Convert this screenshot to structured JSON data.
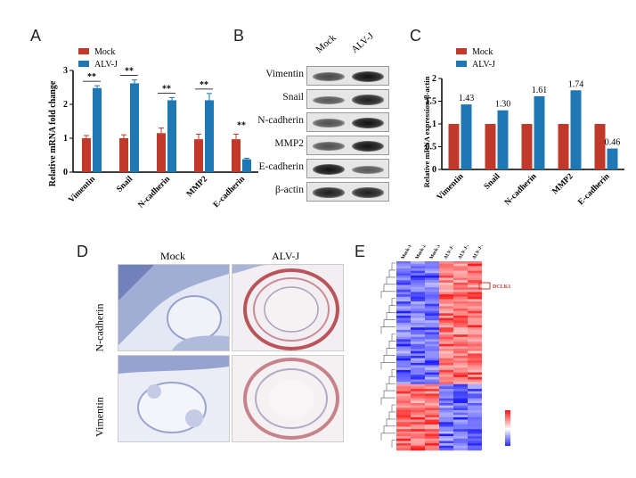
{
  "panels": {
    "a": "A",
    "b": "B",
    "c": "C",
    "d": "D",
    "e": "E"
  },
  "panel_a": {
    "ylabel": "Relative mRNA fold change",
    "legend": [
      "Mock",
      "ALV-J"
    ],
    "significance": "**",
    "colors": {
      "mock": "#c0392b",
      "alvj": "#1f78b4"
    }
  },
  "panel_b": {
    "lanes": [
      "Mock",
      "ALV-J"
    ],
    "rows": [
      "Vimentin",
      "Snail",
      "N-cadherin",
      "MMP2",
      "E-cadherin",
      "β-actin"
    ],
    "intensity": [
      [
        0.6,
        1.0
      ],
      [
        0.5,
        0.9
      ],
      [
        0.55,
        1.0
      ],
      [
        0.55,
        1.0
      ],
      [
        1.0,
        0.5
      ],
      [
        0.9,
        0.9
      ]
    ]
  },
  "panel_c": {
    "ylabel": "Relative mRNA expression/β-actin",
    "legend": [
      "Mock",
      "ALV-J"
    ]
  },
  "panel_d": {
    "col_labels": [
      "Mock",
      "ALV-J"
    ],
    "row_labels": [
      "N-cadherin",
      "Vimentin"
    ]
  },
  "panel_e": {
    "col_labels": [
      "Mock-1",
      "Mock-2",
      "Mock-3",
      "ALV-J-1",
      "ALV-J-2",
      "ALV-J-3"
    ],
    "highlight": "DCLK1"
  },
  "chart_data": [
    {
      "type": "bar",
      "categories": [
        "Vimentin",
        "Snail",
        "N-cadherin",
        "MMP2",
        "E-cadherin"
      ],
      "series": [
        {
          "name": "Mock",
          "values": [
            1.0,
            1.0,
            1.15,
            0.97,
            0.97
          ],
          "errors": [
            0.08,
            0.1,
            0.15,
            0.15,
            0.15
          ]
        },
        {
          "name": "ALV-J",
          "values": [
            2.48,
            2.62,
            2.12,
            2.12,
            0.38
          ],
          "errors": [
            0.07,
            0.1,
            0.08,
            0.2,
            0.03
          ]
        }
      ],
      "ylabel": "Relative mRNA fold change",
      "ylim": [
        0,
        3
      ],
      "yticks": [
        0,
        1,
        2,
        3
      ],
      "significance": [
        "**",
        "**",
        "**",
        "**",
        "**"
      ]
    },
    {
      "type": "bar",
      "categories": [
        "Vimentin",
        "Snail",
        "N-cadherin",
        "MMP2",
        "E-cadherin"
      ],
      "series": [
        {
          "name": "Mock",
          "values": [
            1,
            1,
            1,
            1,
            1
          ]
        },
        {
          "name": "ALV-J",
          "values": [
            1.43,
            1.3,
            1.61,
            1.74,
            0.46
          ],
          "labels": [
            "1.43",
            "1.30",
            "1.61",
            "1.74",
            "0.46"
          ]
        }
      ],
      "ylabel": "Relative mRNA expression/β-actin",
      "ylim": [
        0,
        2
      ],
      "yticks": [
        0.0,
        0.5,
        1.0,
        1.5,
        2.0
      ]
    },
    {
      "type": "heatmap",
      "columns": [
        "Mock-1",
        "Mock-2",
        "Mock-3",
        "ALV-J-1",
        "ALV-J-2",
        "ALV-J-3"
      ],
      "highlighted_gene": "DCLK1",
      "colorbar_range": [
        -2,
        2
      ]
    }
  ]
}
